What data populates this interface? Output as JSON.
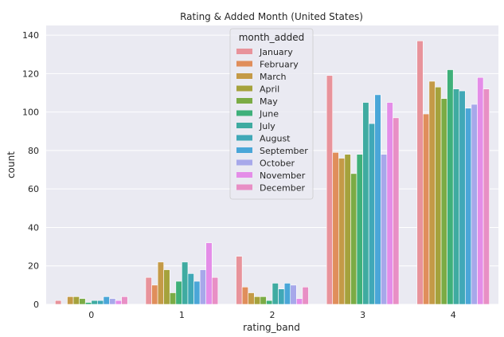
{
  "chart_data": {
    "type": "bar",
    "title": "Rating & Added Month (United States)",
    "xlabel": "rating_band",
    "ylabel": "count",
    "ylim": [
      0,
      145
    ],
    "yticks": [
      0,
      20,
      40,
      60,
      80,
      100,
      120,
      140
    ],
    "categories": [
      "0",
      "1",
      "2",
      "3",
      "4"
    ],
    "grid": true,
    "legend": {
      "title": "month_added",
      "placement": "upper-center"
    },
    "series": [
      {
        "name": "January",
        "color": "#e8939b",
        "values": [
          2,
          14,
          25,
          119,
          137
        ]
      },
      {
        "name": "February",
        "color": "#e08e5b",
        "values": [
          0,
          10,
          9,
          79,
          99
        ]
      },
      {
        "name": "March",
        "color": "#c49a47",
        "values": [
          4,
          22,
          6,
          76,
          116
        ]
      },
      {
        "name": "April",
        "color": "#a5a23c",
        "values": [
          4,
          18,
          4,
          78,
          113
        ]
      },
      {
        "name": "May",
        "color": "#7bab45",
        "values": [
          3,
          6,
          4,
          68,
          107
        ]
      },
      {
        "name": "June",
        "color": "#3fb07a",
        "values": [
          1,
          12,
          2,
          78,
          122
        ]
      },
      {
        "name": "July",
        "color": "#3faba1",
        "values": [
          2,
          22,
          11,
          105,
          112
        ]
      },
      {
        "name": "August",
        "color": "#40a8b7",
        "values": [
          2,
          16,
          8,
          94,
          111
        ]
      },
      {
        "name": "September",
        "color": "#4aa6d8",
        "values": [
          4,
          12,
          11,
          109,
          102
        ]
      },
      {
        "name": "October",
        "color": "#a7a8ea",
        "values": [
          3,
          18,
          10,
          78,
          104
        ]
      },
      {
        "name": "November",
        "color": "#e48de8",
        "values": [
          2,
          32,
          3,
          105,
          118
        ]
      },
      {
        "name": "December",
        "color": "#e88fc5",
        "values": [
          4,
          14,
          9,
          97,
          112
        ]
      }
    ]
  }
}
